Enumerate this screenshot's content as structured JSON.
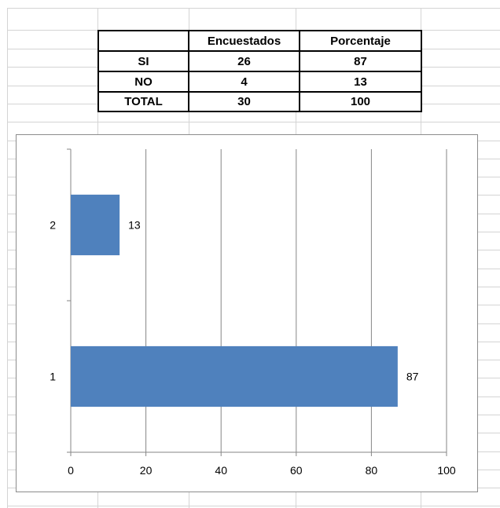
{
  "table": {
    "headers": [
      "",
      "Encuestados",
      "Porcentaje"
    ],
    "rows": [
      [
        "SI",
        "26",
        "87"
      ],
      [
        "NO",
        "4",
        "13"
      ],
      [
        "TOTAL",
        "30",
        "100"
      ]
    ]
  },
  "chart_data": {
    "type": "bar",
    "orientation": "horizontal",
    "categories": [
      "1",
      "2"
    ],
    "values": [
      87,
      13
    ],
    "data_labels": [
      "87",
      "13"
    ],
    "xlim": [
      0,
      100
    ],
    "x_ticks": [
      "0",
      "20",
      "40",
      "60",
      "80",
      "100"
    ],
    "grid": true,
    "legend": "none",
    "bar_color": "#4f81bd",
    "title": "",
    "xlabel": "",
    "ylabel": ""
  }
}
